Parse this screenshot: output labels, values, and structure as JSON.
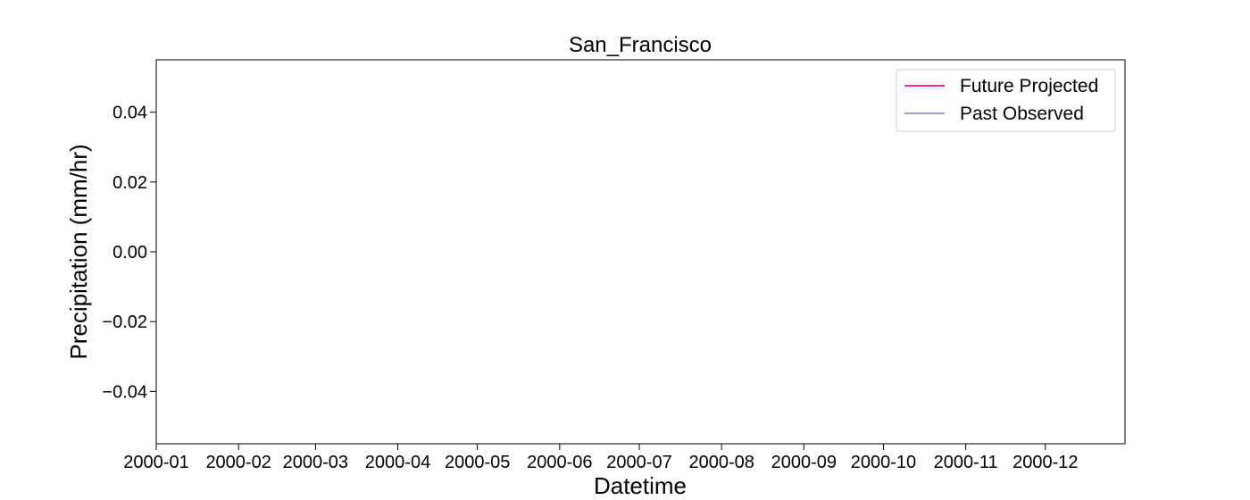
{
  "chart_data": {
    "type": "line",
    "title": "San_Francisco",
    "xlabel": "Datetime",
    "ylabel": "Precipitation (mm/hr)",
    "ylim": [
      -0.055,
      0.055
    ],
    "y_ticks": [
      0.04,
      0.02,
      0.0,
      -0.02,
      -0.04
    ],
    "y_tick_labels": [
      "0.04",
      "0.02",
      "0.00",
      "−0.02",
      "−0.04"
    ],
    "x_range": [
      "2000-01-01",
      "2000-12-31"
    ],
    "x_ticks": [
      "2000-01",
      "2000-02",
      "2000-03",
      "2000-04",
      "2000-05",
      "2000-06",
      "2000-07",
      "2000-08",
      "2000-09",
      "2000-10",
      "2000-11",
      "2000-12"
    ],
    "grid": false,
    "legend_position": "top-right",
    "series": [
      {
        "name": "Future Projected",
        "color": "#e7298a",
        "x": [],
        "y": []
      },
      {
        "name": "Past Observed",
        "color": "#9e9ac8",
        "x": [],
        "y": []
      }
    ]
  }
}
